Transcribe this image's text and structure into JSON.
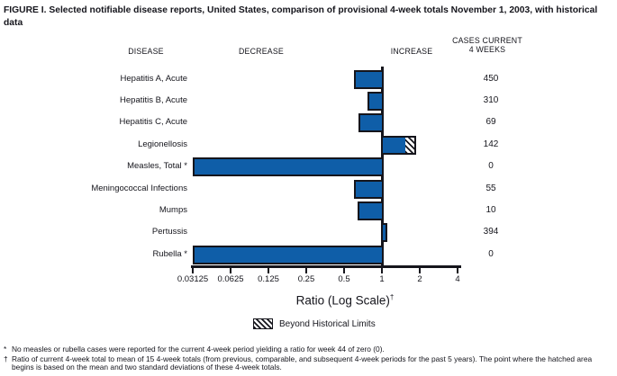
{
  "title": "FIGURE I. Selected notifiable disease reports, United States, comparison of provisional 4-week totals November 1, 2003, with historical data",
  "columns": {
    "disease": "DISEASE",
    "decrease": "DECREASE",
    "increase": "INCREASE",
    "cases_line1": "CASES CURRENT",
    "cases_line2": "4 WEEKS"
  },
  "chart_data": {
    "type": "bar",
    "orientation": "horizontal",
    "scale": "log2",
    "baseline": 1,
    "xlabel": "Ratio (Log Scale)",
    "xlabel_marker": "†",
    "xlim": [
      0.03125,
      4
    ],
    "grid": false,
    "legend_position": "bottom",
    "axis_ticks": [
      {
        "value": 0.03125,
        "label": "0.03125"
      },
      {
        "value": 0.0625,
        "label": "0.0625"
      },
      {
        "value": 0.125,
        "label": "0.125"
      },
      {
        "value": 0.25,
        "label": "0.25"
      },
      {
        "value": 0.5,
        "label": "0.5"
      },
      {
        "value": 1,
        "label": "1"
      },
      {
        "value": 2,
        "label": "2"
      },
      {
        "value": 4,
        "label": "4"
      }
    ],
    "rows": [
      {
        "label": "Hepatitis A, Acute",
        "ratio": 0.6,
        "cases": "450"
      },
      {
        "label": "Hepatitis B, Acute",
        "ratio": 0.77,
        "cases": "310"
      },
      {
        "label": "Hepatitis C, Acute",
        "ratio": 0.65,
        "cases": "69"
      },
      {
        "label": "Legionellosis",
        "ratio": 1.87,
        "beyond_from": 1.6,
        "cases": "142"
      },
      {
        "label": "Measles, Total *",
        "ratio": 0,
        "cases": "0"
      },
      {
        "label": "Meningococcal Infections",
        "ratio": 0.6,
        "cases": "55"
      },
      {
        "label": "Mumps",
        "ratio": 0.64,
        "cases": "10"
      },
      {
        "label": "Pertussis",
        "ratio": 1.1,
        "cases": "394"
      },
      {
        "label": "Rubella *",
        "ratio": 0,
        "cases": "0"
      }
    ]
  },
  "legend": {
    "label": "Beyond Historical Limits"
  },
  "footnotes": [
    {
      "marker": "*",
      "text": "No measles or rubella cases were reported for the current 4-week period yielding a ratio for week 44 of zero (0)."
    },
    {
      "marker": "†",
      "text": "Ratio of current 4-week total to mean of 15 4-week totals (from previous, comparable, and subsequent 4-week periods for the past 5 years). The point where the hatched area begins is based on the mean and two standard deviations of these 4-week totals."
    }
  ],
  "colors": {
    "bar_fill": "#0f5ea8",
    "ink": "#15151c",
    "background": "#ffffff"
  }
}
